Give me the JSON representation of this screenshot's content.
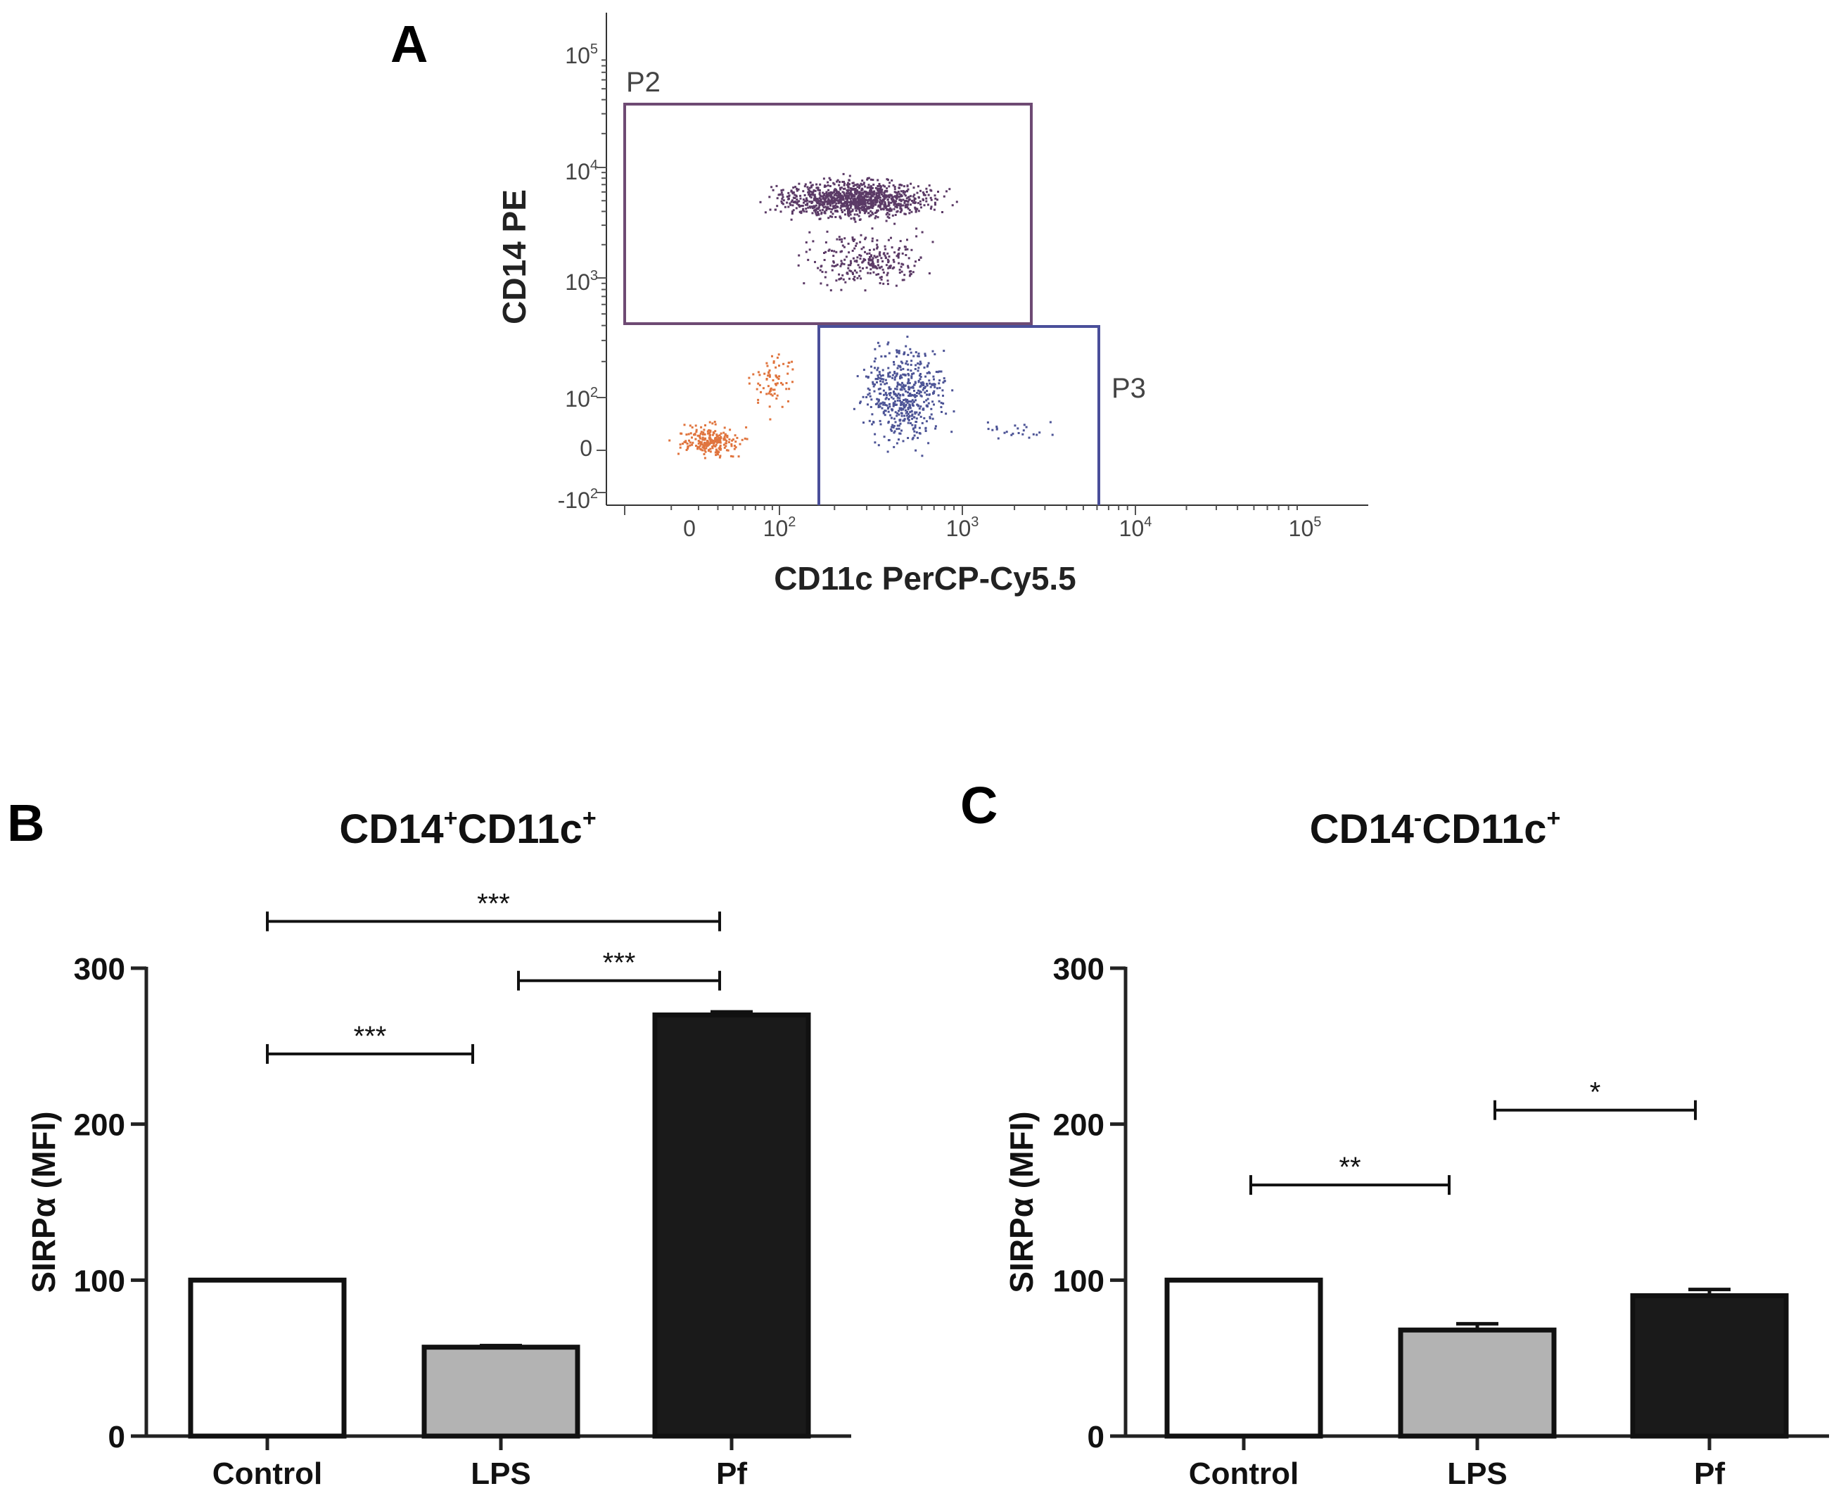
{
  "colors": {
    "gate_p2": "#6e4a73",
    "gate_p3": "#4a4f9a",
    "dots_p2": "#5b3a66",
    "dots_p3": "#4d5496",
    "dots_neg": "#e0743e",
    "bar_control": "#ffffff",
    "bar_lps": "#b3b3b3",
    "bar_pf": "#1a1a1a",
    "axis": "#222222"
  },
  "chart_data": [
    {
      "panel": "A",
      "type": "scatter",
      "xlabel": "CD11c PerCP-Cy5.5",
      "ylabel": "CD14 PE",
      "x_ticks": [
        {
          "base": "0",
          "exp": ""
        },
        {
          "base": "10",
          "exp": "2"
        },
        {
          "base": "10",
          "exp": "3"
        },
        {
          "base": "10",
          "exp": "4"
        },
        {
          "base": "10",
          "exp": "5"
        }
      ],
      "y_ticks": [
        {
          "base": "-10",
          "exp": "2"
        },
        {
          "base": "0",
          "exp": ""
        },
        {
          "base": "10",
          "exp": "2"
        },
        {
          "base": "10",
          "exp": "3"
        },
        {
          "base": "10",
          "exp": "4"
        },
        {
          "base": "10",
          "exp": "5"
        }
      ],
      "gates": [
        {
          "name": "P2",
          "population": "CD14+CD11c+"
        },
        {
          "name": "P3",
          "population": "CD14-CD11c+"
        }
      ]
    },
    {
      "panel": "B",
      "type": "bar",
      "title": {
        "parts": [
          "CD14",
          "+",
          "CD11c",
          "+"
        ]
      },
      "categories": [
        "Control",
        "LPS",
        "Pf"
      ],
      "values": [
        100,
        57,
        270
      ],
      "errors": [
        0,
        1,
        2
      ],
      "ylabel": "SIRPα (MFI)",
      "ylim": [
        0,
        300
      ],
      "yticks": [
        0,
        100,
        200,
        300
      ],
      "significance": [
        {
          "from": 0,
          "to": 2,
          "label": "***",
          "y": 330
        },
        {
          "from": 1,
          "to": 2,
          "label": "***",
          "y": 292
        },
        {
          "from": 0,
          "to": 1,
          "label": "***",
          "y": 245
        }
      ]
    },
    {
      "panel": "C",
      "type": "bar",
      "title": {
        "parts": [
          "CD14",
          "-",
          "CD11c",
          "+"
        ]
      },
      "categories": [
        "Control",
        "LPS",
        "Pf"
      ],
      "values": [
        100,
        68,
        90
      ],
      "errors": [
        0,
        4,
        4
      ],
      "ylabel": "SIRPα (MFI)",
      "ylim": [
        0,
        300
      ],
      "yticks": [
        0,
        100,
        200,
        300
      ],
      "significance": [
        {
          "from": 0,
          "to": 1,
          "label": "**",
          "y": 161
        },
        {
          "from": 1,
          "to": 2,
          "label": "*",
          "y": 209
        }
      ]
    }
  ]
}
